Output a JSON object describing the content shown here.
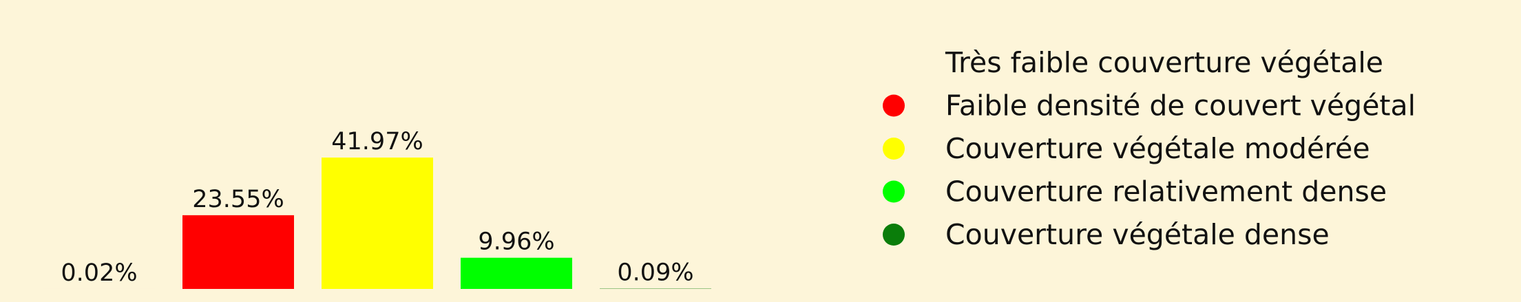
{
  "chart_data": {
    "type": "bar",
    "categories": [
      "Très faible couverture végétale",
      "Faible densité de couvert végétal",
      "Couverture végétale modérée",
      "Couverture relativement dense",
      "Couverture végétale dense"
    ],
    "values": [
      0.02,
      23.55,
      41.97,
      9.96,
      0.09
    ],
    "value_labels": [
      "0.02%",
      "23.55%",
      "41.97%",
      "9.96%",
      "0.09%"
    ],
    "colors": [
      "#fdf5d9",
      "#ff0000",
      "#ffff00",
      "#00ff00",
      "#0a7d0a"
    ],
    "ylim": [
      0,
      100
    ],
    "grid": false,
    "legend_position": "right",
    "background": "#fdf5d9"
  }
}
